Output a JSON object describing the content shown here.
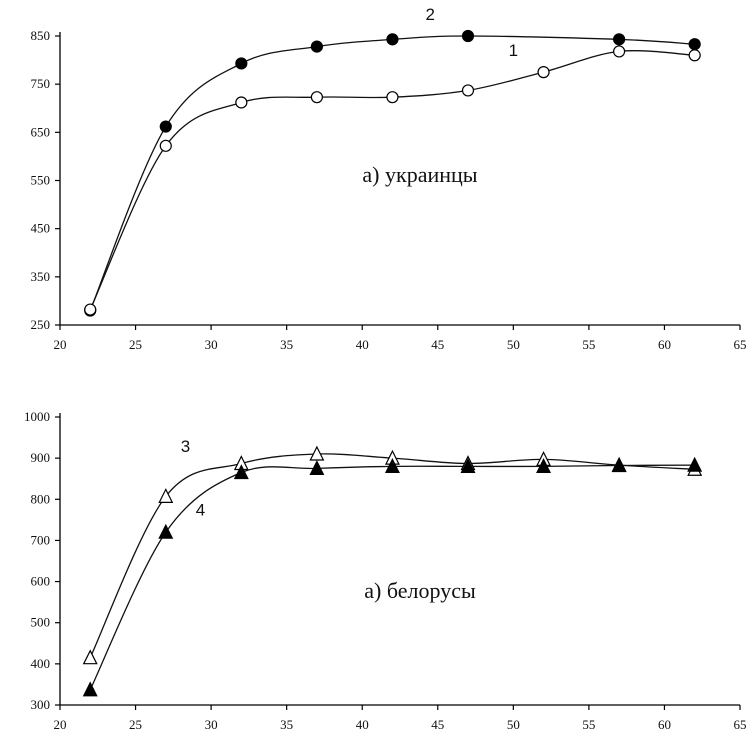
{
  "chart_data": [
    {
      "type": "line",
      "caption": "a) украинцы",
      "xlim": [
        20,
        65
      ],
      "ylim": [
        250,
        850
      ],
      "xticks": [
        20,
        25,
        30,
        35,
        40,
        45,
        50,
        55,
        60,
        65
      ],
      "yticks": [
        250,
        350,
        450,
        550,
        650,
        750,
        850
      ],
      "grid": false,
      "series": [
        {
          "name": "2",
          "marker": "filled-circle",
          "x": [
            22,
            27,
            32,
            37,
            42,
            47,
            57,
            62
          ],
          "y": [
            280,
            662,
            793,
            828,
            843,
            850,
            843,
            833
          ]
        },
        {
          "name": "1",
          "marker": "open-circle",
          "x": [
            22,
            27,
            32,
            37,
            42,
            47,
            52,
            57,
            62
          ],
          "y": [
            282,
            622,
            712,
            723,
            723,
            737,
            775,
            818,
            810
          ]
        }
      ]
    },
    {
      "type": "line",
      "caption": "a) белорусы",
      "xlim": [
        20,
        65
      ],
      "ylim": [
        300,
        1000
      ],
      "xticks": [
        20,
        25,
        30,
        35,
        40,
        45,
        50,
        55,
        60,
        65
      ],
      "yticks": [
        300,
        400,
        500,
        600,
        700,
        800,
        900,
        1000
      ],
      "grid": false,
      "series": [
        {
          "name": "3",
          "marker": "open-triangle",
          "x": [
            22,
            27,
            32,
            37,
            42,
            47,
            52,
            57,
            62
          ],
          "y": [
            415,
            807,
            887,
            910,
            900,
            887,
            897,
            883,
            873
          ]
        },
        {
          "name": "4",
          "marker": "filled-triangle",
          "x": [
            22,
            27,
            32,
            37,
            42,
            47,
            52,
            57,
            62
          ],
          "y": [
            337,
            720,
            865,
            875,
            880,
            880,
            880,
            882,
            883
          ]
        }
      ]
    }
  ]
}
